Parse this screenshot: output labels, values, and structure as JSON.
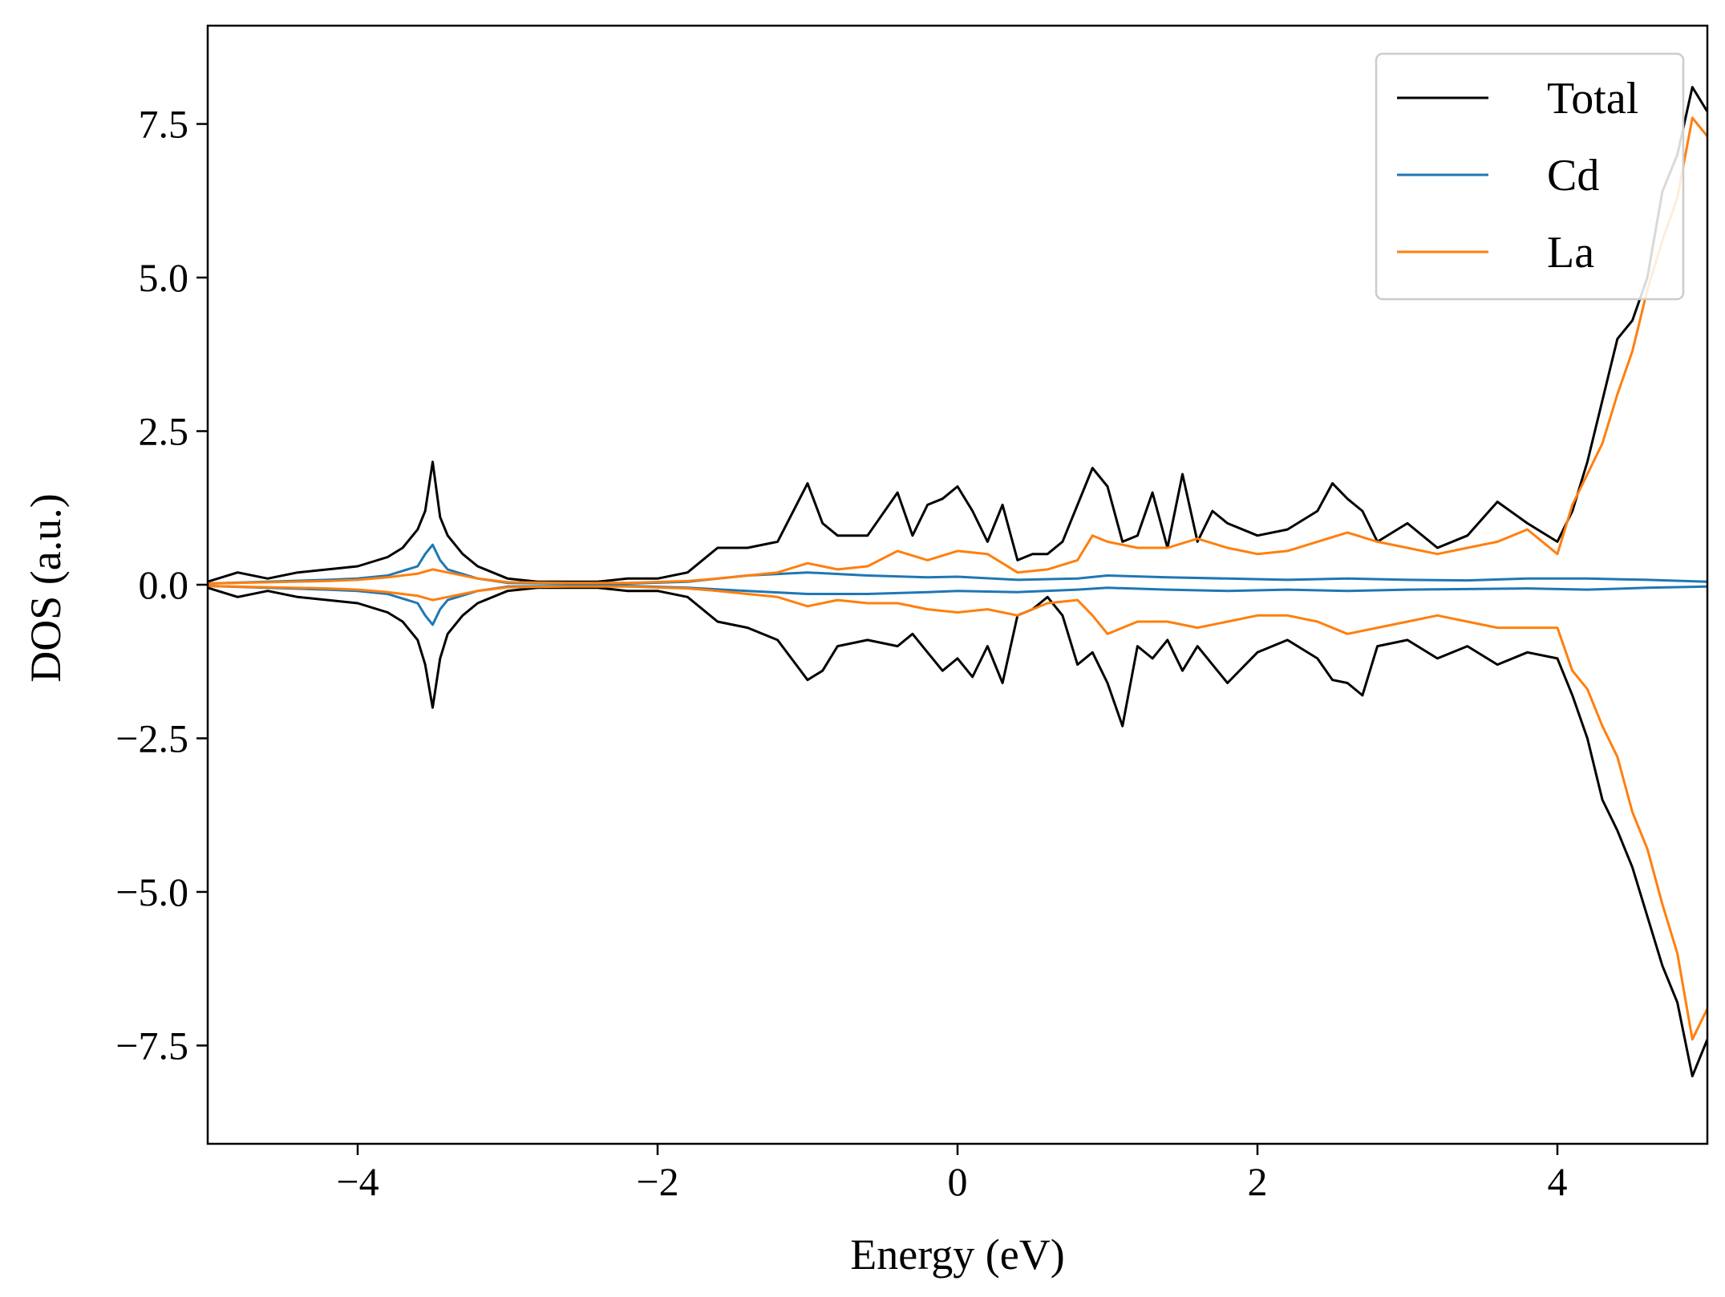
{
  "chart_data": {
    "type": "line",
    "title": "",
    "xlabel": "Energy (eV)",
    "ylabel": "DOS (a.u.)",
    "xlim": [
      -5,
      5
    ],
    "ylim": [
      -9.1,
      9.1
    ],
    "xticks": [
      -4,
      -2,
      0,
      2,
      4
    ],
    "xtick_labels": [
      "−4",
      "−2",
      "0",
      "2",
      "4"
    ],
    "yticks": [
      7.5,
      5.0,
      2.5,
      0.0,
      -2.5,
      -5.0,
      -7.5
    ],
    "ytick_labels": [
      "7.5",
      "5.0",
      "2.5",
      "0.0",
      "−2.5",
      "−5.0",
      "−7.5"
    ],
    "grid": false,
    "legend_position": "top-right",
    "spin_resolved": true,
    "series": [
      {
        "name": "Total",
        "color": "#000000",
        "x": [
          -5.0,
          -4.8,
          -4.6,
          -4.4,
          -4.2,
          -4.0,
          -3.8,
          -3.7,
          -3.6,
          -3.55,
          -3.5,
          -3.45,
          -3.4,
          -3.3,
          -3.2,
          -3.0,
          -2.8,
          -2.6,
          -2.4,
          -2.2,
          -2.0,
          -1.8,
          -1.6,
          -1.4,
          -1.2,
          -1.0,
          -0.9,
          -0.8,
          -0.6,
          -0.4,
          -0.3,
          -0.2,
          -0.1,
          0.0,
          0.1,
          0.2,
          0.3,
          0.4,
          0.5,
          0.6,
          0.7,
          0.8,
          0.9,
          1.0,
          1.1,
          1.2,
          1.3,
          1.4,
          1.5,
          1.6,
          1.7,
          1.8,
          2.0,
          2.2,
          2.4,
          2.5,
          2.6,
          2.7,
          2.8,
          3.0,
          3.2,
          3.4,
          3.6,
          3.8,
          4.0,
          4.1,
          4.2,
          4.3,
          4.4,
          4.5,
          4.6,
          4.7,
          4.8,
          4.9,
          5.0
        ],
        "up": [
          0.05,
          0.2,
          0.1,
          0.2,
          0.25,
          0.3,
          0.45,
          0.6,
          0.9,
          1.2,
          2.0,
          1.1,
          0.8,
          0.5,
          0.3,
          0.1,
          0.05,
          0.05,
          0.05,
          0.1,
          0.1,
          0.2,
          0.6,
          0.6,
          0.7,
          1.65,
          1.0,
          0.8,
          0.8,
          1.5,
          0.8,
          1.3,
          1.4,
          1.6,
          1.2,
          0.7,
          1.3,
          0.4,
          0.5,
          0.5,
          0.7,
          1.3,
          1.9,
          1.6,
          0.7,
          0.8,
          1.5,
          0.6,
          1.8,
          0.7,
          1.2,
          1.0,
          0.8,
          0.9,
          1.2,
          1.65,
          1.4,
          1.2,
          0.7,
          1.0,
          0.6,
          0.8,
          1.35,
          1.0,
          0.7,
          1.2,
          2.0,
          3.0,
          4.0,
          4.3,
          5.0,
          6.4,
          7.0,
          8.1,
          7.7
        ],
        "down": [
          -0.05,
          -0.2,
          -0.1,
          -0.2,
          -0.25,
          -0.3,
          -0.45,
          -0.6,
          -0.9,
          -1.3,
          -2.0,
          -1.2,
          -0.8,
          -0.5,
          -0.3,
          -0.1,
          -0.05,
          -0.05,
          -0.05,
          -0.1,
          -0.1,
          -0.2,
          -0.6,
          -0.7,
          -0.9,
          -1.55,
          -1.4,
          -1.0,
          -0.9,
          -1.0,
          -0.8,
          -1.1,
          -1.4,
          -1.2,
          -1.5,
          -1.0,
          -1.6,
          -0.5,
          -0.4,
          -0.2,
          -0.5,
          -1.3,
          -1.1,
          -1.6,
          -2.3,
          -1.0,
          -1.2,
          -0.9,
          -1.4,
          -1.0,
          -1.3,
          -1.6,
          -1.1,
          -0.9,
          -1.2,
          -1.55,
          -1.6,
          -1.8,
          -1.0,
          -0.9,
          -1.2,
          -1.0,
          -1.3,
          -1.1,
          -1.2,
          -1.8,
          -2.5,
          -3.5,
          -4.0,
          -4.6,
          -5.4,
          -6.2,
          -6.8,
          -8.0,
          -7.4
        ]
      },
      {
        "name": "Cd",
        "color": "#1f77b4",
        "x": [
          -5.0,
          -4.6,
          -4.2,
          -4.0,
          -3.8,
          -3.6,
          -3.55,
          -3.5,
          -3.45,
          -3.4,
          -3.2,
          -3.0,
          -2.6,
          -2.2,
          -1.8,
          -1.4,
          -1.0,
          -0.6,
          -0.2,
          0.0,
          0.4,
          0.8,
          1.0,
          1.4,
          1.8,
          2.2,
          2.6,
          3.0,
          3.4,
          3.8,
          4.2,
          4.6,
          5.0
        ],
        "up": [
          0.02,
          0.05,
          0.08,
          0.1,
          0.15,
          0.3,
          0.5,
          0.65,
          0.4,
          0.25,
          0.1,
          0.03,
          0.02,
          0.02,
          0.05,
          0.15,
          0.2,
          0.15,
          0.12,
          0.13,
          0.08,
          0.1,
          0.15,
          0.12,
          0.1,
          0.08,
          0.1,
          0.08,
          0.07,
          0.1,
          0.1,
          0.08,
          0.05
        ],
        "down": [
          -0.02,
          -0.05,
          -0.08,
          -0.1,
          -0.15,
          -0.3,
          -0.5,
          -0.65,
          -0.4,
          -0.25,
          -0.1,
          -0.03,
          -0.02,
          -0.02,
          -0.05,
          -0.1,
          -0.15,
          -0.15,
          -0.12,
          -0.1,
          -0.12,
          -0.08,
          -0.05,
          -0.08,
          -0.1,
          -0.08,
          -0.1,
          -0.08,
          -0.07,
          -0.06,
          -0.08,
          -0.05,
          -0.03
        ]
      },
      {
        "name": "La",
        "color": "#ff7f0e",
        "x": [
          -5.0,
          -4.6,
          -4.2,
          -4.0,
          -3.8,
          -3.6,
          -3.5,
          -3.4,
          -3.2,
          -3.0,
          -2.6,
          -2.2,
          -1.8,
          -1.6,
          -1.4,
          -1.2,
          -1.0,
          -0.8,
          -0.6,
          -0.4,
          -0.2,
          0.0,
          0.2,
          0.4,
          0.6,
          0.8,
          0.9,
          1.0,
          1.2,
          1.4,
          1.6,
          1.8,
          2.0,
          2.2,
          2.4,
          2.6,
          2.8,
          3.0,
          3.2,
          3.4,
          3.6,
          3.8,
          4.0,
          4.1,
          4.2,
          4.3,
          4.4,
          4.5,
          4.6,
          4.7,
          4.8,
          4.9,
          5.0
        ],
        "up": [
          0.02,
          0.04,
          0.06,
          0.08,
          0.12,
          0.18,
          0.25,
          0.2,
          0.1,
          0.04,
          0.03,
          0.03,
          0.06,
          0.1,
          0.15,
          0.2,
          0.35,
          0.25,
          0.3,
          0.55,
          0.4,
          0.55,
          0.5,
          0.2,
          0.25,
          0.4,
          0.8,
          0.7,
          0.6,
          0.6,
          0.75,
          0.6,
          0.5,
          0.55,
          0.7,
          0.85,
          0.7,
          0.6,
          0.5,
          0.6,
          0.7,
          0.9,
          0.5,
          1.3,
          1.8,
          2.3,
          3.1,
          3.8,
          4.8,
          5.6,
          6.3,
          7.6,
          7.3
        ],
        "down": [
          -0.02,
          -0.04,
          -0.06,
          -0.08,
          -0.12,
          -0.18,
          -0.25,
          -0.2,
          -0.1,
          -0.04,
          -0.03,
          -0.03,
          -0.06,
          -0.1,
          -0.15,
          -0.2,
          -0.35,
          -0.25,
          -0.3,
          -0.3,
          -0.4,
          -0.45,
          -0.4,
          -0.5,
          -0.3,
          -0.25,
          -0.5,
          -0.8,
          -0.6,
          -0.6,
          -0.7,
          -0.6,
          -0.5,
          -0.5,
          -0.6,
          -0.8,
          -0.7,
          -0.6,
          -0.5,
          -0.6,
          -0.7,
          -0.7,
          -0.7,
          -1.4,
          -1.7,
          -2.3,
          -2.8,
          -3.7,
          -4.3,
          -5.2,
          -6.0,
          -7.4,
          -6.9
        ]
      }
    ]
  }
}
